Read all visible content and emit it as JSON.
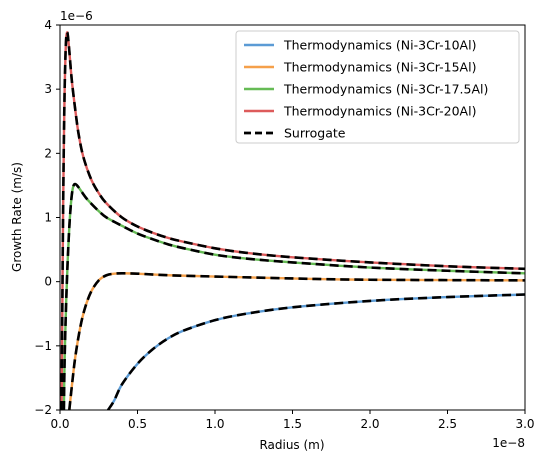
{
  "chart_data": {
    "type": "line",
    "xlabel": "Radius (m)",
    "ylabel": "Growth Rate (m/s)",
    "x_offset_label": "1e−8",
    "y_offset_label": "1e−6",
    "xlim": [
      0,
      3e-08
    ],
    "ylim": [
      -2e-06,
      4e-06
    ],
    "x_ticks": [
      {
        "value": 0,
        "label": "0.0"
      },
      {
        "value": 5e-09,
        "label": "0.5"
      },
      {
        "value": 1e-08,
        "label": "1.0"
      },
      {
        "value": 1.5e-08,
        "label": "1.5"
      },
      {
        "value": 2e-08,
        "label": "2.0"
      },
      {
        "value": 2.5e-08,
        "label": "2.5"
      },
      {
        "value": 3e-08,
        "label": "3.0"
      }
    ],
    "y_ticks": [
      {
        "value": -2e-06,
        "label": "−2"
      },
      {
        "value": -1e-06,
        "label": "−1"
      },
      {
        "value": 0,
        "label": "0"
      },
      {
        "value": 1e-06,
        "label": "1"
      },
      {
        "value": 2e-06,
        "label": "2"
      },
      {
        "value": 3e-06,
        "label": "3"
      },
      {
        "value": 4e-06,
        "label": "4"
      }
    ],
    "grid": false,
    "legend_position": "upper right",
    "series": [
      {
        "name": "Thermodynamics (Ni-3Cr-10Al)",
        "color": "#5b9bd5",
        "style": "solid",
        "x": [
          3.1e-09,
          3.5e-09,
          4e-09,
          5e-09,
          6e-09,
          7e-09,
          8e-09,
          1e-08,
          1.2e-08,
          1.5e-08,
          2e-08,
          2.5e-08,
          3e-08
        ],
        "y": [
          -2e-06,
          -1.85e-06,
          -1.6e-06,
          -1.28e-06,
          -1.05e-06,
          -8.8e-07,
          -7.6e-07,
          -6e-07,
          -5e-07,
          -4e-07,
          -3e-07,
          -2.4e-07,
          -2e-07
        ]
      },
      {
        "name": "Thermodynamics (Ni-3Cr-15Al)",
        "color": "#f5a04a",
        "style": "solid",
        "x": [
          6e-10,
          8e-10,
          1e-09,
          1.3e-09,
          1.6e-09,
          2e-09,
          2.5e-09,
          3e-09,
          3.5e-09,
          4e-09,
          5e-09,
          7e-09,
          1e-08,
          1.5e-08,
          2e-08,
          3e-08
        ],
        "y": [
          -2e-06,
          -1.55e-06,
          -1.15e-06,
          -7.2e-07,
          -4.2e-07,
          -1.6e-07,
          2e-08,
          1e-07,
          1.25e-07,
          1.3e-07,
          1.25e-07,
          1e-07,
          8e-08,
          5e-08,
          3e-08,
          2e-08
        ]
      },
      {
        "name": "Thermodynamics (Ni-3Cr-17.5Al)",
        "color": "#66bb55",
        "style": "solid",
        "x": [
          2.5e-10,
          3e-10,
          4e-10,
          5e-10,
          6e-10,
          7e-10,
          8e-10,
          9e-10,
          1e-09,
          1.1e-09,
          1.2e-09,
          1.4e-09,
          1.7e-09,
          2e-09,
          2.5e-09,
          3e-09,
          4e-09,
          5e-09,
          6e-09,
          7e-09,
          8e-09,
          1e-08,
          1.2e-08,
          1.5e-08,
          2e-08,
          2.5e-08,
          3e-08
        ],
        "y": [
          -2e-06,
          -1.2e-06,
          -3e-07,
          3.5e-07,
          8.5e-07,
          1.2e-06,
          1.42e-06,
          1.51e-06,
          1.52e-06,
          1.5e-06,
          1.47e-06,
          1.4e-06,
          1.3e-06,
          1.22e-06,
          1.1e-06,
          1e-06,
          8.7e-07,
          7.5e-07,
          6.6e-07,
          5.8e-07,
          5.2e-07,
          4.2e-07,
          3.6e-07,
          3e-07,
          2.2e-07,
          1.7e-07,
          1.3e-07
        ]
      },
      {
        "name": "Thermodynamics (Ni-3Cr-20Al)",
        "color": "#dd5b5b",
        "style": "solid",
        "x": [
          1e-10,
          1.5e-10,
          2e-10,
          2.5e-10,
          3e-10,
          3.5e-10,
          4e-10,
          4.5e-10,
          5e-10,
          6e-10,
          7e-10,
          8e-10,
          1e-09,
          1.2e-09,
          1.5e-09,
          2e-09,
          2.5e-09,
          3e-09,
          4e-09,
          5e-09,
          6e-09,
          7e-09,
          8e-09,
          1e-08,
          1.2e-08,
          1.5e-08,
          2e-08,
          2.5e-08,
          3e-08
        ],
        "y": [
          -2e-06,
          -4e-07,
          1.1e-06,
          2.2e-06,
          3e-06,
          3.5e-06,
          3.8e-06,
          3.88e-06,
          3.85e-06,
          3.6e-06,
          3.3e-06,
          3.05e-06,
          2.65e-06,
          2.3e-06,
          1.95e-06,
          1.6e-06,
          1.38e-06,
          1.22e-06,
          1e-06,
          8.6e-07,
          7.6e-07,
          6.8e-07,
          6.2e-07,
          5.2e-07,
          4.5e-07,
          3.8e-07,
          3e-07,
          2.4e-07,
          2e-07
        ]
      },
      {
        "name": "Surrogate",
        "color": "#000000",
        "style": "dashed",
        "follows": [
          "Thermodynamics (Ni-3Cr-10Al)",
          "Thermodynamics (Ni-3Cr-15Al)",
          "Thermodynamics (Ni-3Cr-17.5Al)",
          "Thermodynamics (Ni-3Cr-20Al)"
        ]
      }
    ]
  }
}
